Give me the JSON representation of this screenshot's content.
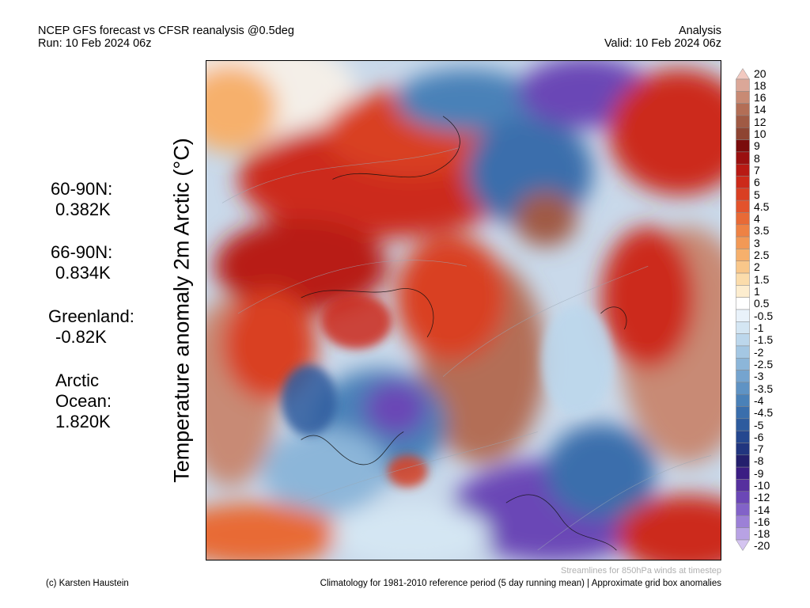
{
  "header": {
    "title_line1": "NCEP GFS forecast vs CFSR reanalysis @0.5deg",
    "title_line2": "Run: 10 Feb 2024 06z",
    "right_line1": "Analysis",
    "right_line2": "Valid: 10 Feb 2024 06z"
  },
  "y_label": "Temperature anomaly 2m Arctic (°C)",
  "stats": {
    "s1_label": "60-90N:",
    "s1_value": "0.382K",
    "s2_label": "66-90N:",
    "s2_value": "0.834K",
    "s3_label": "Greenland:",
    "s3_value": "-0.82K",
    "s4_label_line1": "Arctic",
    "s4_label_line2": "Ocean:",
    "s4_value": "1.820K"
  },
  "colorbar": {
    "labels": [
      "20",
      "18",
      "16",
      "14",
      "12",
      "10",
      "9",
      "8",
      "7",
      "6",
      "5",
      "4.5",
      "4",
      "3.5",
      "3",
      "2.5",
      "2",
      "1.5",
      "1",
      "0.5",
      "-0.5",
      "-1",
      "-1.5",
      "-2",
      "-2.5",
      "-3",
      "-3.5",
      "-4",
      "-4.5",
      "-5",
      "-6",
      "-7",
      "-8",
      "-9",
      "-10",
      "-12",
      "-14",
      "-16",
      "-18",
      "-20"
    ],
    "colors": [
      "#f2c9c0",
      "#dba798",
      "#c88a74",
      "#b36e56",
      "#a05a44",
      "#8e4432",
      "#7a0c0c",
      "#9a1010",
      "#b81a14",
      "#cc2a1a",
      "#d93f23",
      "#e3532c",
      "#e86a36",
      "#ee8244",
      "#f29956",
      "#f6b06c",
      "#f9c78a",
      "#fbdcab",
      "#fdedcf",
      "#ffffff",
      "#e9f2fa",
      "#d4e6f3",
      "#bcd7ec",
      "#a4c7e3",
      "#8cb6d9",
      "#75a4cf",
      "#5f93c4",
      "#4a81b8",
      "#3a6eac",
      "#2d5b9e",
      "#25478f",
      "#21357f",
      "#241f6d",
      "#3b1d83",
      "#56309e",
      "#6b47b6",
      "#8262c8",
      "#9c80d7",
      "#b8a2e4",
      "#d4c4f0"
    ]
  },
  "footer": {
    "streamline_note": "Streamlines for 850hPa winds at timestep",
    "copyright": "(c) Karsten Haustein",
    "climatology_note": "Climatology for 1981-2010 reference period (5 day running mean) | Approximate grid box anomalies"
  }
}
